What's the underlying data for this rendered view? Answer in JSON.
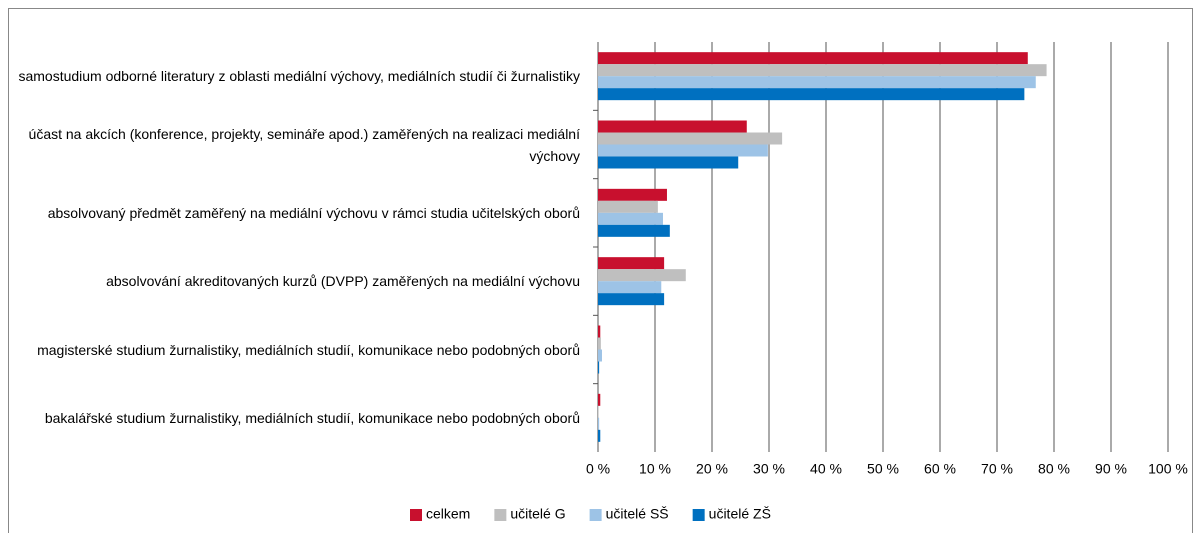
{
  "chart_data": {
    "type": "bar",
    "orientation": "horizontal",
    "categories": [
      "samostudium odborné literatury z oblasti mediální výchovy, mediálních studií či žurnalistiky",
      "účast na akcích (konference, projekty, semináře apod.) zaměřených na realizaci mediální výchovy",
      "absolvovaný předmět zaměřený na mediální výchovu v rámci studia učitelských oborů",
      "absolvování akreditovaných kurzů (DVPP) zaměřených na mediální výchovu",
      "magisterské studium žurnalistiky, mediálních studií, komunikace nebo podobných oborů",
      "bakalářské studium žurnalistiky, mediálních studií, komunikace nebo podobných oborů"
    ],
    "series": [
      {
        "name": "celkem",
        "color": "#c8102e",
        "values": [
          75.4,
          26.1,
          12.1,
          11.6,
          0.4,
          0.4
        ]
      },
      {
        "name": "učitelé G",
        "color": "#bfbfbf",
        "values": [
          78.7,
          32.3,
          10.5,
          15.4,
          0.5,
          0.1
        ]
      },
      {
        "name": "učitelé SŠ",
        "color": "#9dc3e6",
        "values": [
          76.8,
          29.8,
          11.4,
          11.1,
          0.7,
          0.2
        ]
      },
      {
        "name": "učitelé ZŠ",
        "color": "#0070c0",
        "values": [
          74.8,
          24.6,
          12.6,
          11.6,
          0.2,
          0.4
        ]
      }
    ],
    "xlim": [
      0,
      100
    ],
    "xticks": [
      {
        "value": 0,
        "label": "0 %"
      },
      {
        "value": 10,
        "label": "10 %"
      },
      {
        "value": 20,
        "label": "20 %"
      },
      {
        "value": 30,
        "label": "30 %"
      },
      {
        "value": 40,
        "label": "40 %"
      },
      {
        "value": 50,
        "label": "50 %"
      },
      {
        "value": 60,
        "label": "60 %"
      },
      {
        "value": 70,
        "label": "70 %"
      },
      {
        "value": 80,
        "label": "80 %"
      },
      {
        "value": 90,
        "label": "90 %"
      },
      {
        "value": 100,
        "label": "100 %"
      }
    ],
    "grid": true,
    "legend": "bottom"
  }
}
